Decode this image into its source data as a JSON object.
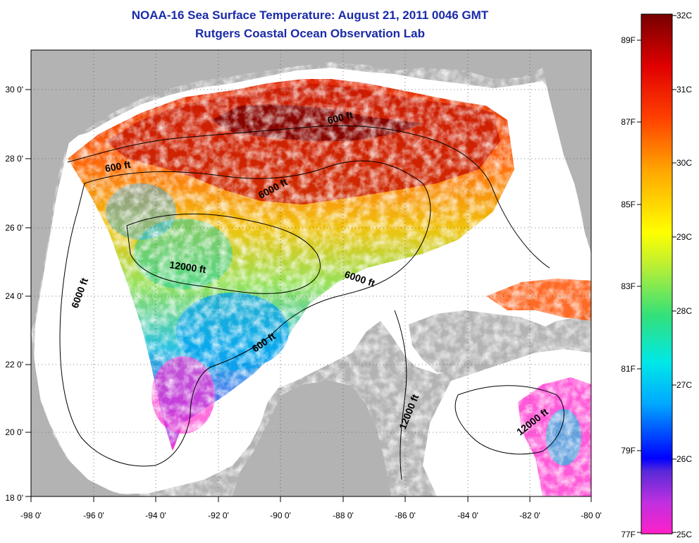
{
  "title": "NOAA-16 Sea Surface Temperature:  August 21, 2011 0046 GMT",
  "subtitle": "Rutgers Coastal Ocean Observation Lab",
  "map": {
    "lon_range": [
      -98,
      -80
    ],
    "lat_range": [
      18,
      31
    ],
    "lon_ticks": [
      "-98 0'",
      "-96 0'",
      "-94 0'",
      "-92 0'",
      "-90 0'",
      "-88 0'",
      "-86 0'",
      "-84 0'",
      "-82 0'",
      "-80 0'"
    ],
    "lat_ticks": [
      "30 0'",
      "28 0'",
      "26 0'",
      "24 0'",
      "22 0'",
      "20 0'",
      "18 0'"
    ],
    "land_color": "#b3b3b3",
    "nodata_color": "#ffffff",
    "grid": "dotted"
  },
  "contour_labels": [
    "600 ft",
    "600 ft",
    "6000 ft",
    "12000 ft",
    "6000 ft",
    "6000 ft",
    "600 ft",
    "12000 ft",
    "12000 ft"
  ],
  "colorbar": {
    "celsius_labels": [
      "32C",
      "31C",
      "30C",
      "29C",
      "28C",
      "27C",
      "26C",
      "25C"
    ],
    "fahrenheit_labels": [
      "89F",
      "87F",
      "85F",
      "83F",
      "81F",
      "79F",
      "77F"
    ],
    "stops": [
      "#ff20c8",
      "#c030e0",
      "#5a2ad8",
      "#0000ff",
      "#00a8ff",
      "#00e8e8",
      "#33e07a",
      "#c0f030",
      "#ffff00",
      "#ffa500",
      "#ff4000",
      "#e00000",
      "#780000"
    ]
  }
}
